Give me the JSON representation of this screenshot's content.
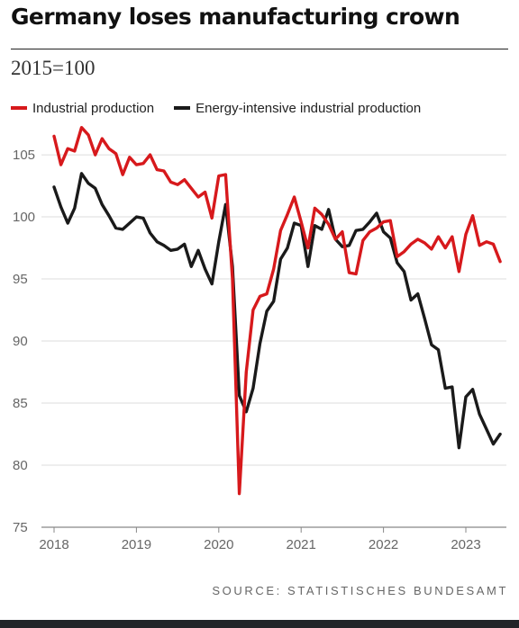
{
  "title": "Germany loses manufacturing crown",
  "subtitle": "2015=100",
  "source": "SOURCE: STATISTISCHES BUNDESAMT",
  "chart_data": {
    "type": "line",
    "x_start": "2018-01",
    "x_interval": "month",
    "xlim": [
      "2018-01",
      "2023-06"
    ],
    "x_ticks": [
      "2018",
      "2019",
      "2020",
      "2021",
      "2022",
      "2023"
    ],
    "ylim": [
      75,
      105
    ],
    "y_ticks": [
      75,
      80,
      85,
      90,
      95,
      100,
      105
    ],
    "grid": "horizontal",
    "legend": "top-left",
    "series": [
      {
        "name": "Industrial production",
        "color": "#d7191c",
        "values": [
          106.5,
          104.2,
          105.5,
          105.3,
          107.2,
          106.6,
          105.0,
          106.3,
          105.5,
          105.1,
          103.4,
          104.8,
          104.2,
          104.3,
          105.0,
          103.8,
          103.7,
          102.8,
          102.6,
          103.0,
          102.3,
          101.6,
          102.0,
          99.9,
          103.3,
          103.4,
          95.0,
          77.7,
          87.5,
          92.5,
          93.6,
          93.8,
          95.8,
          98.9,
          100.2,
          101.6,
          99.6,
          97.5,
          100.7,
          100.2,
          99.4,
          98.2,
          98.8,
          95.5,
          95.4,
          98.1,
          98.8,
          99.1,
          99.6,
          99.7,
          96.8,
          97.2,
          97.8,
          98.2,
          97.9,
          97.4,
          98.4,
          97.5,
          98.4,
          95.6,
          98.6,
          100.1,
          97.7,
          98.0,
          97.8,
          96.4
        ]
      },
      {
        "name": "Energy-intensive industrial production",
        "color": "#1a1a1a",
        "values": [
          102.4,
          100.8,
          99.5,
          100.7,
          103.5,
          102.7,
          102.3,
          101.0,
          100.1,
          99.1,
          99.0,
          99.5,
          100.0,
          99.9,
          98.7,
          98.0,
          97.7,
          97.3,
          97.4,
          97.8,
          96.0,
          97.3,
          95.8,
          94.6,
          98.0,
          101.0,
          96.0,
          85.6,
          84.3,
          86.2,
          89.8,
          92.4,
          93.2,
          96.6,
          97.5,
          99.5,
          99.3,
          96.0,
          99.3,
          99.0,
          100.6,
          98.2,
          97.6,
          97.7,
          98.9,
          99.0,
          99.6,
          100.3,
          98.8,
          98.3,
          96.3,
          95.6,
          93.3,
          93.8,
          91.8,
          89.7,
          89.3,
          86.2,
          86.3,
          81.4,
          85.5,
          86.1,
          84.1,
          82.9,
          81.7,
          82.5
        ]
      }
    ]
  }
}
